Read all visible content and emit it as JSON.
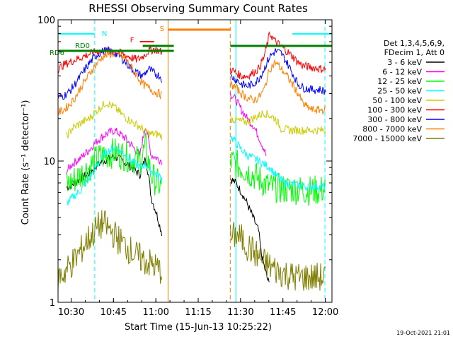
{
  "chart_data": {
    "type": "line",
    "title": "RHESSI Observing Summary Count Rates",
    "xlabel": "Start Time (15-Jun-13 10:25:22)",
    "ylabel": "Count Rate (s⁻¹ detector⁻¹)",
    "yscale": "log",
    "ylim": [
      1,
      100
    ],
    "xlim_minutes": [
      0,
      97
    ],
    "x_tick_labels": [
      "10:30",
      "10:45",
      "11:00",
      "11:15",
      "11:30",
      "11:45",
      "12:00"
    ],
    "y_tick_labels": [
      "1",
      "10",
      "100"
    ],
    "legend_header": [
      "Det 1,3,4,5,6,9,",
      "FDecim 1, Att 0"
    ],
    "timestamp": "19-Oct-2021 21:01",
    "colors": {
      "axes": "#000000",
      "gap": "#ff7f00",
      "night": "#00ffff",
      "saa": "#ff7f00",
      "flare": "#ff0000",
      "decim": "#007f00"
    },
    "annotations": {
      "night_label": "N",
      "flare_label": "F",
      "saa_label": "S",
      "rd0_label": "RD0",
      "rd6_label": "RD6"
    },
    "series": [
      {
        "name": "3 - 6 keV",
        "color": "#000000",
        "points": [
          [
            3,
            6.5
          ],
          [
            5,
            6.8
          ],
          [
            8,
            7.5
          ],
          [
            11,
            8.2
          ],
          [
            14,
            9.5
          ],
          [
            17,
            10.2
          ],
          [
            20,
            10.8
          ],
          [
            23,
            10.0
          ],
          [
            26,
            9.0
          ],
          [
            29,
            8.0
          ],
          [
            31,
            10.5
          ],
          [
            32,
            8.0
          ],
          [
            33,
            5.5
          ],
          [
            35,
            4.2
          ],
          [
            36,
            3.5
          ],
          [
            37,
            3.0
          ],
          [
            61,
            7.5
          ],
          [
            63,
            7.0
          ],
          [
            65,
            6.0
          ],
          [
            67,
            5.0
          ],
          [
            69,
            4.0
          ],
          [
            71,
            3.2
          ],
          [
            72,
            2.2
          ],
          [
            73,
            1.8
          ],
          [
            74,
            1.5
          ],
          [
            75,
            1.3
          ]
        ]
      },
      {
        "name": "6 - 12 keV",
        "color": "#ff00ff",
        "points": [
          [
            3,
            8.5
          ],
          [
            5,
            9.5
          ],
          [
            8,
            10.5
          ],
          [
            11,
            12.0
          ],
          [
            14,
            14.0
          ],
          [
            17,
            15.5
          ],
          [
            20,
            16.5
          ],
          [
            23,
            15.0
          ],
          [
            26,
            13.0
          ],
          [
            29,
            11.0
          ],
          [
            31,
            18.0
          ],
          [
            32,
            14.0
          ],
          [
            33,
            11.0
          ],
          [
            35,
            10.5
          ],
          [
            37,
            10.0
          ],
          [
            61,
            30.0
          ],
          [
            63,
            27.0
          ],
          [
            65,
            23.0
          ],
          [
            67,
            20.0
          ],
          [
            69,
            18.0
          ],
          [
            71,
            15.0
          ],
          [
            73,
            12.0
          ],
          [
            74,
            10.5
          ]
        ]
      },
      {
        "name": "12 - 25 keV",
        "color": "#00ff00",
        "points": [
          [
            3,
            6.8
          ],
          [
            5,
            7.2
          ],
          [
            8,
            8.0
          ],
          [
            11,
            9.0
          ],
          [
            14,
            10.5
          ],
          [
            17,
            11.0
          ],
          [
            20,
            11.5
          ],
          [
            23,
            11.0
          ],
          [
            26,
            10.5
          ],
          [
            29,
            10.0
          ],
          [
            31,
            12.5
          ],
          [
            32,
            10.0
          ],
          [
            33,
            8.0
          ],
          [
            35,
            7.0
          ],
          [
            37,
            6.5
          ],
          [
            61,
            10.0
          ],
          [
            63,
            9.5
          ],
          [
            65,
            9.0
          ],
          [
            67,
            8.5
          ],
          [
            69,
            8.0
          ],
          [
            71,
            7.5
          ],
          [
            73,
            7.0
          ],
          [
            75,
            6.5
          ],
          [
            77,
            6.5
          ],
          [
            80,
            6.3
          ],
          [
            84,
            6.3
          ],
          [
            88,
            6.2
          ],
          [
            92,
            6.2
          ],
          [
            95,
            6.3
          ]
        ]
      },
      {
        "name": "25 - 50 keV",
        "color": "#00ffff",
        "points": [
          [
            3,
            5.0
          ],
          [
            5,
            5.5
          ],
          [
            8,
            6.2
          ],
          [
            11,
            7.5
          ],
          [
            14,
            9.5
          ],
          [
            17,
            11.5
          ],
          [
            20,
            12.5
          ],
          [
            23,
            11.5
          ],
          [
            26,
            10.0
          ],
          [
            29,
            9.0
          ],
          [
            31,
            9.5
          ],
          [
            32,
            9.0
          ],
          [
            33,
            8.5
          ],
          [
            35,
            8.0
          ],
          [
            37,
            7.5
          ],
          [
            61,
            15.0
          ],
          [
            63,
            13.5
          ],
          [
            65,
            12.0
          ],
          [
            67,
            11.0
          ],
          [
            69,
            10.5
          ],
          [
            71,
            10.0
          ],
          [
            73,
            9.5
          ],
          [
            75,
            9.0
          ],
          [
            77,
            8.0
          ],
          [
            80,
            7.0
          ],
          [
            84,
            6.8
          ],
          [
            88,
            6.6
          ],
          [
            92,
            6.6
          ],
          [
            95,
            6.6
          ]
        ]
      },
      {
        "name": "50 - 100 keV",
        "color": "#cccc00",
        "points": [
          [
            3,
            15.0
          ],
          [
            5,
            17.0
          ],
          [
            8,
            18.5
          ],
          [
            11,
            20.0
          ],
          [
            14,
            23.0
          ],
          [
            17,
            26.0
          ],
          [
            20,
            24.0
          ],
          [
            23,
            21.0
          ],
          [
            26,
            19.0
          ],
          [
            29,
            17.5
          ],
          [
            31,
            16.0
          ],
          [
            33,
            15.5
          ],
          [
            35,
            15.5
          ],
          [
            37,
            15.0
          ],
          [
            61,
            20.0
          ],
          [
            63,
            19.5
          ],
          [
            65,
            19.0
          ],
          [
            67,
            19.0
          ],
          [
            69,
            20.0
          ],
          [
            71,
            21.0
          ],
          [
            73,
            22.0
          ],
          [
            75,
            21.0
          ],
          [
            77,
            20.0
          ],
          [
            79,
            17.0
          ],
          [
            82,
            16.5
          ],
          [
            86,
            16.5
          ],
          [
            90,
            16.5
          ],
          [
            95,
            16.5
          ]
        ]
      },
      {
        "name": "100 - 300 keV",
        "color": "#ff0000",
        "points": [
          [
            0,
            45
          ],
          [
            2,
            48
          ],
          [
            4,
            50
          ],
          [
            6,
            52
          ],
          [
            8,
            54
          ],
          [
            10,
            56
          ],
          [
            12,
            58
          ],
          [
            14,
            60
          ],
          [
            16,
            60
          ],
          [
            18,
            60
          ],
          [
            20,
            60
          ],
          [
            22,
            58
          ],
          [
            24,
            56
          ],
          [
            26,
            54
          ],
          [
            28,
            52
          ],
          [
            30,
            55
          ],
          [
            32,
            60
          ],
          [
            34,
            62
          ],
          [
            36,
            60
          ],
          [
            37,
            58
          ],
          [
            61,
            45
          ],
          [
            63,
            42
          ],
          [
            65,
            40
          ],
          [
            67,
            40
          ],
          [
            69,
            42
          ],
          [
            71,
            45
          ],
          [
            73,
            55
          ],
          [
            75,
            80
          ],
          [
            77,
            70
          ],
          [
            79,
            65
          ],
          [
            81,
            60
          ],
          [
            83,
            55
          ],
          [
            85,
            50
          ],
          [
            87,
            47
          ],
          [
            90,
            46
          ],
          [
            93,
            45
          ],
          [
            95,
            45
          ]
        ]
      },
      {
        "name": "300 - 800 keV",
        "color": "#0000ff",
        "points": [
          [
            0,
            28
          ],
          [
            2,
            29
          ],
          [
            4,
            31
          ],
          [
            6,
            35
          ],
          [
            8,
            40
          ],
          [
            10,
            46
          ],
          [
            12,
            52
          ],
          [
            14,
            57
          ],
          [
            16,
            60
          ],
          [
            18,
            60
          ],
          [
            20,
            58
          ],
          [
            22,
            55
          ],
          [
            24,
            50
          ],
          [
            26,
            45
          ],
          [
            28,
            42
          ],
          [
            30,
            40
          ],
          [
            32,
            45
          ],
          [
            34,
            42
          ],
          [
            36,
            40
          ],
          [
            37,
            38
          ],
          [
            61,
            40
          ],
          [
            63,
            38
          ],
          [
            65,
            35
          ],
          [
            67,
            34
          ],
          [
            69,
            35
          ],
          [
            71,
            38
          ],
          [
            73,
            45
          ],
          [
            75,
            55
          ],
          [
            77,
            60
          ],
          [
            79,
            58
          ],
          [
            81,
            50
          ],
          [
            83,
            42
          ],
          [
            85,
            35
          ],
          [
            87,
            33
          ],
          [
            90,
            32
          ],
          [
            93,
            32
          ],
          [
            95,
            31
          ]
        ]
      },
      {
        "name": "800 - 7000 keV",
        "color": "#ff7f00",
        "points": [
          [
            0,
            22
          ],
          [
            2,
            23
          ],
          [
            4,
            25
          ],
          [
            6,
            28
          ],
          [
            8,
            33
          ],
          [
            10,
            38
          ],
          [
            12,
            44
          ],
          [
            14,
            50
          ],
          [
            16,
            55
          ],
          [
            18,
            57
          ],
          [
            20,
            58
          ],
          [
            22,
            56
          ],
          [
            24,
            52
          ],
          [
            26,
            46
          ],
          [
            28,
            40
          ],
          [
            30,
            35
          ],
          [
            32,
            33
          ],
          [
            34,
            31
          ],
          [
            36,
            30
          ],
          [
            37,
            29
          ],
          [
            61,
            35
          ],
          [
            63,
            33
          ],
          [
            65,
            30
          ],
          [
            67,
            28
          ],
          [
            69,
            27
          ],
          [
            71,
            28
          ],
          [
            73,
            32
          ],
          [
            75,
            45
          ],
          [
            77,
            50
          ],
          [
            79,
            45
          ],
          [
            81,
            40
          ],
          [
            83,
            35
          ],
          [
            85,
            30
          ],
          [
            87,
            25
          ],
          [
            90,
            23
          ],
          [
            93,
            23
          ],
          [
            95,
            23
          ]
        ]
      },
      {
        "name": "7000 - 15000 keV",
        "color": "#7f7f00",
        "points": [
          [
            0,
            1.5
          ],
          [
            2,
            1.6
          ],
          [
            4,
            1.8
          ],
          [
            6,
            2.0
          ],
          [
            8,
            2.3
          ],
          [
            10,
            2.7
          ],
          [
            12,
            3.0
          ],
          [
            14,
            3.4
          ],
          [
            16,
            3.6
          ],
          [
            18,
            3.3
          ],
          [
            20,
            3.0
          ],
          [
            22,
            2.7
          ],
          [
            24,
            2.5
          ],
          [
            26,
            2.3
          ],
          [
            28,
            2.1
          ],
          [
            30,
            2.0
          ],
          [
            32,
            1.9
          ],
          [
            34,
            1.8
          ],
          [
            36,
            1.7
          ],
          [
            37,
            1.7
          ],
          [
            61,
            2.8
          ],
          [
            63,
            3.0
          ],
          [
            65,
            2.8
          ],
          [
            67,
            2.5
          ],
          [
            69,
            2.3
          ],
          [
            71,
            2.1
          ],
          [
            73,
            1.9
          ],
          [
            75,
            1.8
          ],
          [
            77,
            1.7
          ],
          [
            80,
            1.6
          ],
          [
            84,
            1.5
          ],
          [
            88,
            1.5
          ],
          [
            92,
            1.5
          ],
          [
            95,
            1.5
          ]
        ]
      }
    ]
  }
}
